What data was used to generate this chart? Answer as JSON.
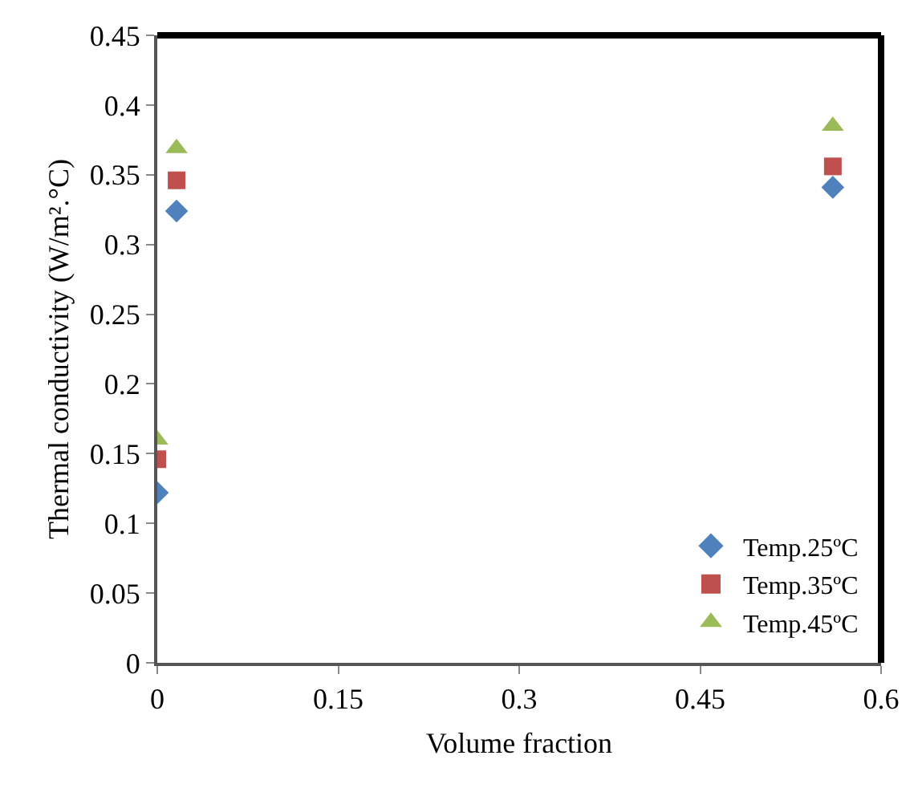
{
  "chart_data": {
    "type": "scatter",
    "xlabel": "Volume fraction",
    "ylabel": "Thermal conductivity (W/m².°C)",
    "xlim": [
      0,
      0.6
    ],
    "xticks": [
      0,
      0.15,
      0.3,
      0.45,
      0.6
    ],
    "ylim": [
      0,
      0.45
    ],
    "yticks": [
      0,
      0.05,
      0.1,
      0.15,
      0.2,
      0.25,
      0.3,
      0.35,
      0.4,
      0.45
    ],
    "grid": false,
    "legend": "bottom right",
    "series": [
      {
        "name": "Temp.25ºC",
        "color": "#4f81bd",
        "marker": "diamond",
        "x": [
          0,
          0.016,
          0.56
        ],
        "values": [
          0.122,
          0.324,
          0.341
        ]
      },
      {
        "name": "Temp.35ºC",
        "color": "#c0504d",
        "marker": "square",
        "x": [
          0,
          0.016,
          0.56
        ],
        "values": [
          0.146,
          0.346,
          0.356
        ]
      },
      {
        "name": "Temp.45ºC",
        "color": "#9bbb59",
        "marker": "triangle",
        "x": [
          0,
          0.016,
          0.56
        ],
        "values": [
          0.16,
          0.369,
          0.385
        ]
      }
    ]
  }
}
